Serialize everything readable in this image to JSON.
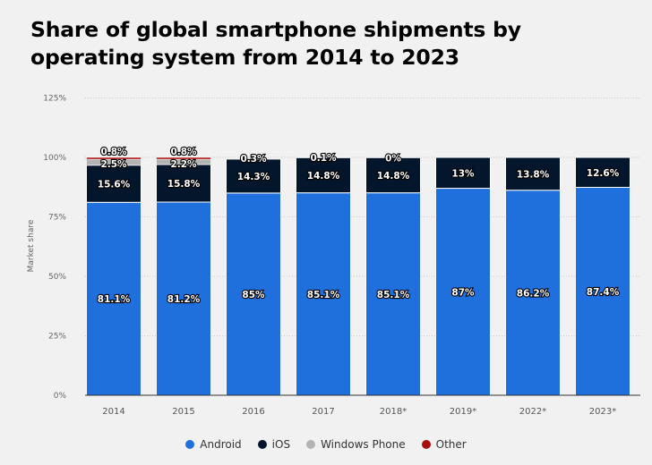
{
  "title": "Share of global smartphone shipments by operating system from 2014 to 2023",
  "chart_data": {
    "type": "bar",
    "stacked": true,
    "title": "Share of global smartphone shipments by operating system from 2014 to 2023",
    "ylabel": "Market share",
    "xlabel": "",
    "ylim": [
      0,
      125
    ],
    "yticks": [
      "0%",
      "25%",
      "50%",
      "75%",
      "100%",
      "125%"
    ],
    "ytick_values": [
      0,
      25,
      50,
      75,
      100,
      125
    ],
    "grid": true,
    "legend": "bottom",
    "categories": [
      "2014",
      "2015",
      "2016",
      "2017",
      "2018*",
      "2019*",
      "2022*",
      "2023*"
    ],
    "series": [
      {
        "name": "Android",
        "color": "#1f6fdd",
        "values": [
          81.1,
          81.2,
          85,
          85.1,
          85.1,
          87,
          86.2,
          87.4
        ],
        "labels": [
          "81.1%",
          "81.2%",
          "85%",
          "85.1%",
          "85.1%",
          "87%",
          "86.2%",
          "87.4%"
        ]
      },
      {
        "name": "iOS",
        "color": "#03162b",
        "values": [
          15.6,
          15.8,
          14.3,
          14.8,
          14.8,
          13,
          13.8,
          12.6
        ],
        "labels": [
          "15.6%",
          "15.8%",
          "14.3%",
          "14.8%",
          "14.8%",
          "13%",
          "13.8%",
          "12.6%"
        ]
      },
      {
        "name": "Windows Phone",
        "color": "#b3b3b3",
        "values": [
          2.5,
          2.2,
          0.3,
          0.1,
          0,
          null,
          null,
          null
        ],
        "labels": [
          "2.5%",
          "2.2%",
          "0.3%",
          "0.1%",
          "0%",
          null,
          null,
          null
        ]
      },
      {
        "name": "Other",
        "color": "#a80c0c",
        "values": [
          0.8,
          0.8,
          null,
          null,
          null,
          null,
          null,
          null
        ],
        "labels": [
          "0.8%",
          "0.8%",
          null,
          null,
          null,
          null,
          null,
          null
        ]
      }
    ]
  }
}
